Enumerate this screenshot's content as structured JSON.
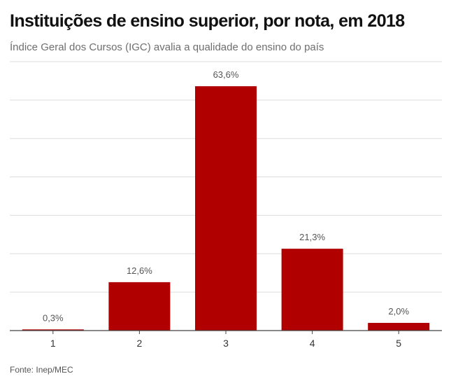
{
  "header": {
    "title": "Instituições de ensino superior, por nota, em 2018",
    "subtitle": "Índice Geral dos Cursos (IGC) avalia a qualidade do ensino do país"
  },
  "footer": {
    "source": "Fonte: Inep/MEC"
  },
  "colors": {
    "bar": "#b00000",
    "grid": "#dddddd",
    "axis": "#444444",
    "label": "#555555"
  },
  "chart_data": {
    "type": "bar",
    "title": "Instituições de ensino superior, por nota, em 2018",
    "subtitle": "Índice Geral dos Cursos (IGC) avalia a qualidade do ensino do país",
    "xlabel": "",
    "ylabel": "",
    "categories": [
      "1",
      "2",
      "3",
      "4",
      "5"
    ],
    "values": [
      0.3,
      12.6,
      63.6,
      21.3,
      2.0
    ],
    "data_labels": [
      "0,3%",
      "12,6%",
      "63,6%",
      "21,3%",
      "2,0%"
    ],
    "ylim": [
      0,
      70
    ],
    "grid": true,
    "legend": "none"
  }
}
